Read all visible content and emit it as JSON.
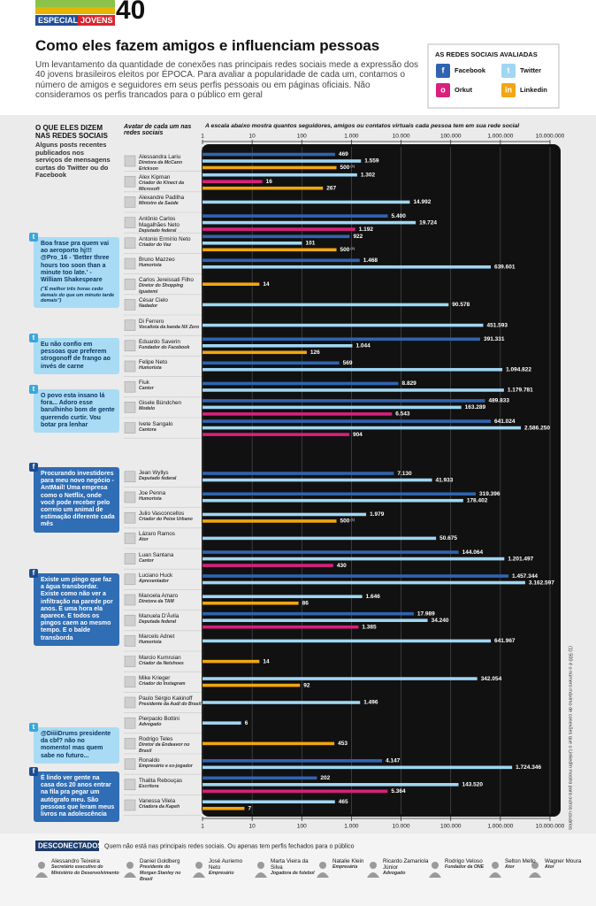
{
  "header": {
    "section": "ESPECIAL",
    "topic": "JOVENS",
    "number": "40"
  },
  "title": "Como eles fazem amigos e influenciam pessoas",
  "description": "Um levantamento da quantidade de conexões nas principais redes sociais mede a expressão dos 40 jovens brasileiros eleitos por ÉPOCA. Para avaliar a popularidade de cada um, contamos o número de amigos e seguidores em seus perfis pessoais ou em páginas oficiais. Não consideramos os perfis trancados para o público em geral",
  "legend_title": "AS REDES SOCIAIS AVALIADAS",
  "quotes_header": "O QUE ELES DIZEM NAS REDES SOCIAIS",
  "quotes_intro": "Alguns posts recentes publicados nos serviços de mensagens curtas do Twitter ou do Facebook",
  "avatar_header": "Avatar de cada um nas redes sociais",
  "quotes": [
    {
      "icon": "twitter",
      "text": "Boa frase pra quem vai ao aeroporto hj!!! @Pro_16 - 'Better three hours too soon than a minute too late.' - William Shakespeare",
      "note": "(\"É melhor três horas cedo demais do que um minuto tarde demais\")"
    },
    {
      "icon": "twitter",
      "text": "Eu não confio em pessoas que preferem strogonoff de frango ao invés de carne"
    },
    {
      "icon": "twitter",
      "text": "O povo esta insano lá fora... Adoro esse barulhinho bom de gente querendo curtir. Vou botar pra lenhar"
    },
    {
      "icon": "facebook",
      "text": "Procurando investidores para meu novo negócio - AntMail! Uma empresa como o Netflix, onde você pode receber pelo correio um animal de estimação diferente cada mês"
    },
    {
      "icon": "facebook",
      "text": "Existe um pingo que faz a água transbordar. Existe como não ver a infiltração na parede por anos. E uma hora ela aparece. E todos os pingos caem ao mesmo tempo. E o balde transborda"
    },
    {
      "icon": "twitter",
      "text": "@DiiiiDrums presidente da cbf? não no momento! mas quem sabe no futuro..."
    },
    {
      "icon": "facebook",
      "text": "É lindo ver gente na casa dos 20 anos entrar na fila pra pegar um autógrafo meu. São pessoas que leram meus livros na adolescência"
    }
  ],
  "footnote": "(1) 500 é o número máximo de conexões que o LinkedIn mostra para outros usuários",
  "disconnected": {
    "title": "DESCONECTADOS",
    "subtitle": "Quem não está nas principais redes sociais. Ou apenas tem perfis fechados para o público",
    "people": [
      {
        "name": "Alessandro Teixeira",
        "role": "Secretário executivo do Ministério do Desenvolvimento"
      },
      {
        "name": "Daniel Goldberg",
        "role": "Presidente do Morgan Stanley no Brasil"
      },
      {
        "name": "José Auriemo Neto",
        "role": "Empresário"
      },
      {
        "name": "Marta Vieira da Silva",
        "role": "Jogadora de futebol"
      },
      {
        "name": "Natalie Klein",
        "role": "Empresária"
      },
      {
        "name": "Ricardo Zamariola Júnior",
        "role": "Advogado"
      },
      {
        "name": "Rodrigo Veloso",
        "role": "Fundador da ONE"
      },
      {
        "name": "Selton Mello",
        "role": "Ator"
      },
      {
        "name": "Wagner Moura",
        "role": "Ator"
      }
    ]
  },
  "chart_data": {
    "type": "hbar",
    "log_scale": true,
    "grid": true,
    "x_label": "A escala abaixo mostra quantos seguidores, amigos ou contatos virtuais cada pessoa tem em sua rede social",
    "xlim": [
      1,
      10000000
    ],
    "xticks": [
      1,
      10,
      100,
      {
        "value": 1000,
        "label": "1.000"
      },
      {
        "value": 10000,
        "label": "10.000"
      },
      {
        "value": 100000,
        "label": "100.000"
      },
      {
        "value": 1000000,
        "label": "1.000.000"
      },
      {
        "value": 10000000,
        "label": "10.000.000"
      }
    ],
    "categories": [
      "Alessandra Lariu",
      "Alex Kipman",
      "Alexandre Padilha",
      "Antônio Carlos Magalhães Neto",
      "Antonio Ermírio Neto",
      "Bruno Mazzeo",
      "Carlos Jereissati Filho",
      "César Cielo",
      "Di Ferrero",
      "Eduardo Saverin",
      "Felipe Neto",
      "Fiuk",
      "Gisele Bündchen",
      "Ivete Sangalo",
      "Jean Wyllys",
      "Joe Penna",
      "Julio Vasconcellos",
      "Lázaro Ramos",
      "Luan Santana",
      "Luciano Huck",
      "Manoela Amaro",
      "Manuela D'Ávila",
      "Marcelo Adnet",
      "Marcio Kumruian",
      "Mike Krieger",
      "Paulo Sérgio Kakinoff",
      "Pierpaolo Bottini",
      "Rodrigo Teles",
      "Ronaldo",
      "Thalita Rebouças",
      "Vanessa Vilela"
    ],
    "roles": [
      "Diretora da McCann Erickson",
      "Criador do Kinect da Microsoft",
      "Ministro da Saúde",
      "Deputado federal",
      "Criador do Vaz",
      "Humorista",
      "Diretor do Shopping Iguatemi",
      "Nadador",
      "Vocalista da banda NX Zero",
      "Fundador do Facebook",
      "Humorista",
      "Cantor",
      "Modelo",
      "Cantora",
      "Deputado federal",
      "Humorista",
      "Criador do Peixe Urbano",
      "Ator",
      "Cantor",
      "Apresentador",
      "Diretora da TAM",
      "Deputada federal",
      "Humorista",
      "Criador da Netshoes",
      "Criador do Instagram",
      "Presidente da Audi do Brasil",
      "Advogado",
      "Diretor da Endeavor no Brasil",
      "Empresário e ex-jogador",
      "Escritora",
      "Criadora da Kapeh"
    ],
    "series": [
      {
        "name": "Facebook",
        "color": "#2f64b0",
        "values": [
          469,
          null,
          null,
          5400,
          922,
          1468,
          null,
          null,
          null,
          391331,
          569,
          8829,
          489833,
          641024,
          7130,
          319396,
          null,
          null,
          144064,
          1457344,
          null,
          17989,
          null,
          null,
          null,
          null,
          null,
          null,
          4147,
          202,
          null
        ],
        "value_labels": [
          "469",
          null,
          null,
          "5.400",
          "922",
          "1.468",
          null,
          null,
          null,
          "391.331",
          "569",
          "8.829",
          "489.833",
          "641.024",
          "7.130",
          "319.396",
          null,
          null,
          "144.064",
          "1.457.344",
          null,
          "17.989",
          null,
          null,
          null,
          null,
          null,
          null,
          "4.147",
          "202",
          null
        ]
      },
      {
        "name": "Twitter",
        "color": "#9fd6f2",
        "values": [
          1559,
          1302,
          14992,
          19724,
          101,
          639601,
          null,
          90578,
          451593,
          1044,
          1094822,
          1179781,
          163289,
          2586250,
          41933,
          178402,
          1979,
          50675,
          1201497,
          3162597,
          1646,
          34240,
          641967,
          null,
          342054,
          1496,
          6,
          null,
          1724346,
          143520,
          465
        ],
        "value_labels": [
          "1.559",
          "1.302",
          "14.992",
          "19.724",
          "101",
          "639.601",
          null,
          "90.578",
          "451.593",
          "1.044",
          "1.094.822",
          "1.179.781",
          "163.289",
          "2.586.250",
          "41.933",
          "178.402",
          "1.979",
          "50.675",
          "1.201.497",
          "3.162.597",
          "1.646",
          "34.240",
          "641.967",
          null,
          "342.054",
          "1.496",
          "6",
          null,
          "1.724.346",
          "143.520",
          "465"
        ]
      },
      {
        "name": "Orkut",
        "color": "#d9207c",
        "values": [
          null,
          16,
          null,
          1192,
          null,
          null,
          null,
          null,
          null,
          null,
          null,
          null,
          6543,
          904,
          null,
          null,
          null,
          null,
          430,
          null,
          null,
          1385,
          null,
          null,
          null,
          null,
          null,
          null,
          null,
          5364,
          null
        ],
        "value_labels": [
          null,
          "16",
          null,
          "1.192",
          null,
          null,
          null,
          null,
          null,
          null,
          null,
          null,
          "6.543",
          "904",
          null,
          null,
          null,
          null,
          "430",
          null,
          null,
          "1.385",
          null,
          null,
          null,
          null,
          null,
          null,
          null,
          "5.364",
          null
        ]
      },
      {
        "name": "Linkedin",
        "color": "#f2a60f",
        "values": [
          500,
          267,
          null,
          null,
          500,
          null,
          14,
          null,
          null,
          126,
          null,
          null,
          null,
          null,
          null,
          null,
          500,
          null,
          null,
          null,
          86,
          null,
          null,
          14,
          92,
          null,
          null,
          453,
          null,
          null,
          7
        ],
        "value_labels": [
          "500",
          "267",
          null,
          null,
          "500",
          null,
          "14",
          null,
          null,
          "126",
          null,
          null,
          null,
          null,
          null,
          null,
          "500",
          null,
          null,
          null,
          "86",
          null,
          null,
          "14",
          "92",
          null,
          null,
          "453",
          null,
          null,
          "7"
        ],
        "footnote_marks": [
          "(1)",
          null,
          null,
          null,
          "(1)",
          null,
          null,
          null,
          null,
          null,
          null,
          null,
          null,
          null,
          null,
          null,
          "(1)",
          null,
          null,
          null,
          null,
          null,
          null,
          null,
          null,
          null,
          null,
          null,
          null,
          null,
          null
        ]
      }
    ]
  }
}
